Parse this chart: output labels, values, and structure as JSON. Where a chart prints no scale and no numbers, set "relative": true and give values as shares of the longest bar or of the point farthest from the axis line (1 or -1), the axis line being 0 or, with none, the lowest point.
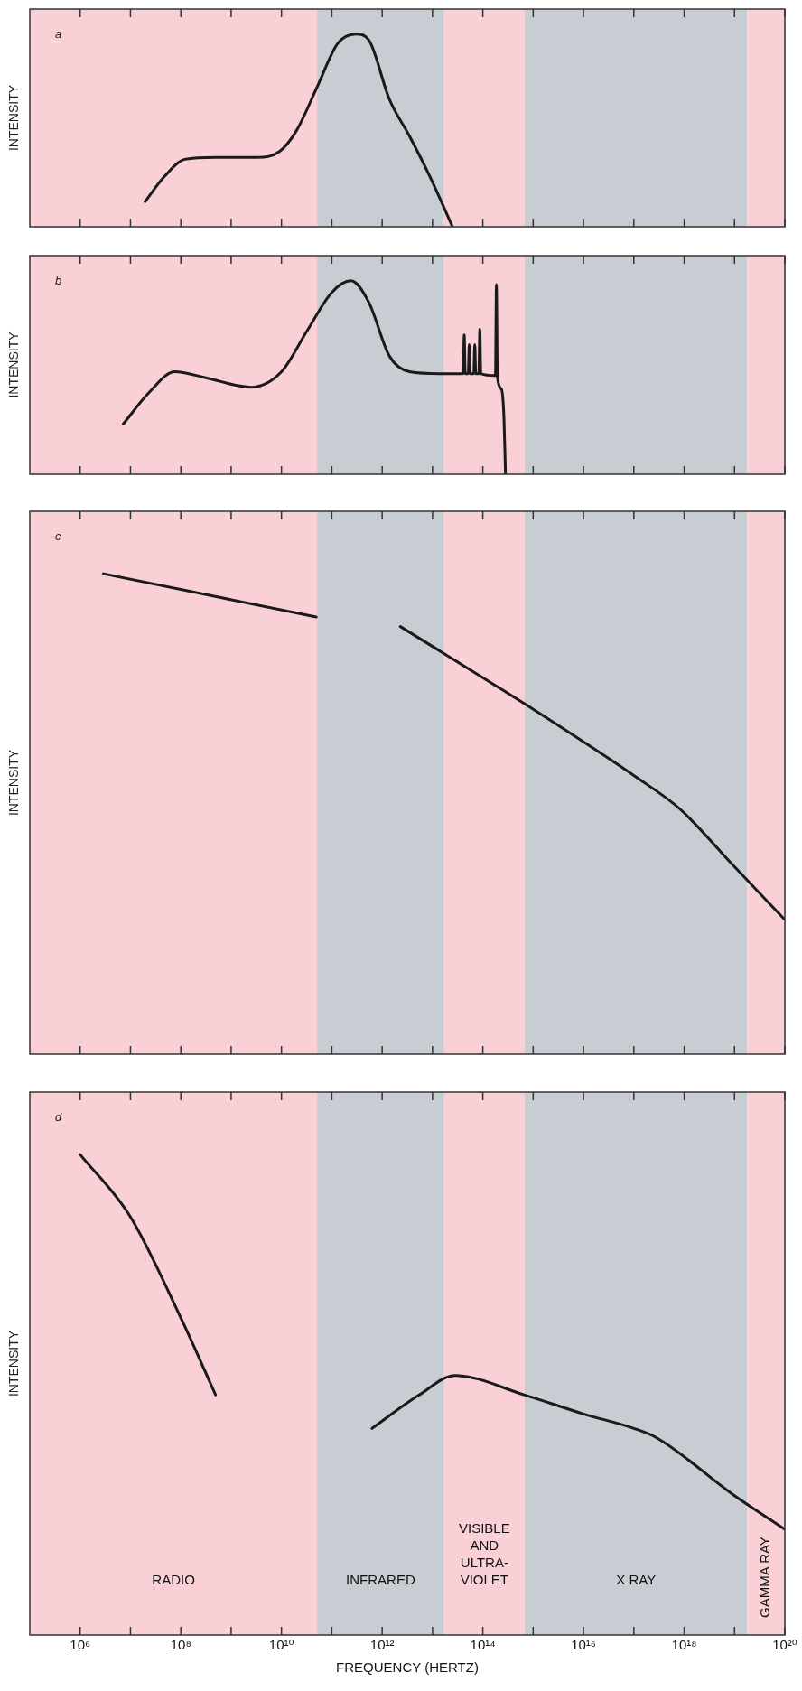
{
  "chart_data": [
    {
      "type": "line",
      "title": "a",
      "ylabel": "INTENSITY",
      "relative": true,
      "log": "x",
      "xlim": [
        100000.0,
        1e+20
      ],
      "xticks": [
        {
          "value": 1000000.0,
          "label": null
        },
        {
          "value": 10000000.0,
          "label": null
        },
        {
          "value": 100000000.0,
          "label": null
        },
        {
          "value": 1000000000.0,
          "label": null
        },
        {
          "value": 10000000000.0,
          "label": null
        },
        {
          "value": 100000000000.0,
          "label": null
        },
        {
          "value": 1000000000000.0,
          "label": null
        },
        {
          "value": 10000000000000.0,
          "label": null
        },
        {
          "value": 100000000000000.0,
          "label": null
        },
        {
          "value": 1000000000000000.0,
          "label": null
        },
        {
          "value": 1e+16,
          "label": null
        },
        {
          "value": 1e+17,
          "label": null
        },
        {
          "value": 1e+18,
          "label": null
        },
        {
          "value": 1e+19,
          "label": null
        },
        {
          "value": 1e+20,
          "label": null
        }
      ],
      "tick_labels": false,
      "marker": "none",
      "bands": [
        {
          "axis": "x",
          "from": 100000.0,
          "to": 51000000000.0,
          "color": "#f8d0d6"
        },
        {
          "axis": "x",
          "from": 51000000000.0,
          "to": 17000000000000.0,
          "color": "#c8ccd3"
        },
        {
          "axis": "x",
          "from": 17000000000000.0,
          "to": 680000000000000.0,
          "color": "#f8d0d6"
        },
        {
          "axis": "x",
          "from": 680000000000000.0,
          "to": 1.8e+19,
          "color": "#c8ccd3"
        },
        {
          "axis": "x",
          "from": 1.8e+19,
          "to": 1e+20,
          "color": "#f8d0d6"
        }
      ],
      "series": [
        {
          "color": "#1a1a1a",
          "x": [
            19500000.0,
            47000000.0,
            120000000.0,
            490000000.0,
            3200000000.0,
            9100000000.0,
            20000000000.0,
            52000000000.0,
            130000000000.0,
            300000000000.0,
            540000000000.0,
            1400000000000.0,
            3500000000000.0,
            8900000000000.0,
            25000000000000.0
          ],
          "values": [
            0.13,
            0.26,
            0.35,
            0.36,
            0.36,
            0.39,
            0.5,
            0.73,
            0.95,
            1,
            0.97,
            0.66,
            0.47,
            0.26,
            0
          ]
        }
      ]
    },
    {
      "type": "line",
      "title": "b",
      "ylabel": "INTENSITY",
      "relative": true,
      "log": "x",
      "xlim": [
        100000.0,
        1e+20
      ],
      "xticks": [
        {
          "value": 1000000.0,
          "label": null
        },
        {
          "value": 10000000.0,
          "label": null
        },
        {
          "value": 100000000.0,
          "label": null
        },
        {
          "value": 1000000000.0,
          "label": null
        },
        {
          "value": 10000000000.0,
          "label": null
        },
        {
          "value": 100000000000.0,
          "label": null
        },
        {
          "value": 1000000000000.0,
          "label": null
        },
        {
          "value": 10000000000000.0,
          "label": null
        },
        {
          "value": 100000000000000.0,
          "label": null
        },
        {
          "value": 1000000000000000.0,
          "label": null
        },
        {
          "value": 1e+16,
          "label": null
        },
        {
          "value": 1e+17,
          "label": null
        },
        {
          "value": 1e+18,
          "label": null
        },
        {
          "value": 1e+19,
          "label": null
        },
        {
          "value": 1e+20,
          "label": null
        }
      ],
      "tick_labels": false,
      "marker": "none",
      "bands": [
        {
          "axis": "x",
          "from": 100000.0,
          "to": 51000000000.0,
          "color": "#f8d0d6"
        },
        {
          "axis": "x",
          "from": 51000000000.0,
          "to": 17000000000000.0,
          "color": "#c8ccd3"
        },
        {
          "axis": "x",
          "from": 17000000000000.0,
          "to": 680000000000000.0,
          "color": "#f8d0d6"
        },
        {
          "axis": "x",
          "from": 680000000000000.0,
          "to": 1.8e+19,
          "color": "#c8ccd3"
        },
        {
          "axis": "x",
          "from": 1.8e+19,
          "to": 1e+20,
          "color": "#f8d0d6"
        }
      ],
      "series": [
        {
          "color": "#1a1a1a",
          "x": [
            7200000.0,
            23000000.0,
            76000000.0,
            300000000.0,
            2500000000.0,
            10000000000.0,
            32000000000.0,
            100000000000.0,
            240000000000.0,
            540000000000.0,
            1400000000000.0,
            3500000000000.0,
            14100000000000.0,
            40700000000000.0,
            42700000000000.0,
            44700000000000.0,
            51300000000000.0,
            53700000000000.0,
            56200000000000.0,
            66100000000000.0,
            69200000000000.0,
            72400000000000.0,
            83200000000000.0,
            87100000000000.0,
            91200000000000.0,
            178000000000000.0,
            186000000000000.0,
            195000000000000.0,
            234000000000000.0,
            263000000000000.0,
            282000000000000.0
          ],
          "values": [
            0.26,
            0.42,
            0.53,
            0.5,
            0.45,
            0.53,
            0.74,
            0.94,
            1,
            0.89,
            0.61,
            0.53,
            0.52,
            0.52,
            0.72,
            0.52,
            0.52,
            0.67,
            0.52,
            0.52,
            0.67,
            0.52,
            0.52,
            0.75,
            0.52,
            0.51,
            0.98,
            0.5,
            0.44,
            0.29,
            0
          ]
        }
      ]
    },
    {
      "type": "line",
      "title": "c",
      "ylabel": "INTENSITY",
      "relative": true,
      "log": "x",
      "xlim": [
        100000.0,
        1e+20
      ],
      "xticks": [
        {
          "value": 1000000.0,
          "label": null
        },
        {
          "value": 10000000.0,
          "label": null
        },
        {
          "value": 100000000.0,
          "label": null
        },
        {
          "value": 1000000000.0,
          "label": null
        },
        {
          "value": 10000000000.0,
          "label": null
        },
        {
          "value": 100000000000.0,
          "label": null
        },
        {
          "value": 1000000000000.0,
          "label": null
        },
        {
          "value": 10000000000000.0,
          "label": null
        },
        {
          "value": 100000000000000.0,
          "label": null
        },
        {
          "value": 1000000000000000.0,
          "label": null
        },
        {
          "value": 1e+16,
          "label": null
        },
        {
          "value": 1e+17,
          "label": null
        },
        {
          "value": 1e+18,
          "label": null
        },
        {
          "value": 1e+19,
          "label": null
        },
        {
          "value": 1e+20,
          "label": null
        }
      ],
      "tick_labels": false,
      "marker": "none",
      "bands": [
        {
          "axis": "x",
          "from": 100000.0,
          "to": 51000000000.0,
          "color": "#f8d0d6"
        },
        {
          "axis": "x",
          "from": 51000000000.0,
          "to": 17000000000000.0,
          "color": "#c8ccd3"
        },
        {
          "axis": "x",
          "from": 17000000000000.0,
          "to": 680000000000000.0,
          "color": "#f8d0d6"
        },
        {
          "axis": "x",
          "from": 680000000000000.0,
          "to": 1.8e+19,
          "color": "#c8ccd3"
        },
        {
          "axis": "x",
          "from": 1.8e+19,
          "to": 1e+20,
          "color": "#f8d0d6"
        }
      ],
      "series": [
        {
          "color": "#1a1a1a",
          "x": [
            2900000.0,
            49000000000.0,
            200000000000.0,
            2300000000000.0,
            660000000000000.0,
            1e+16,
            1e+17,
            8.3e+17,
            1e+19,
            1e+20
          ],
          "values": [
            1,
            0.91,
            null,
            0.89,
            0.73,
            0.65,
            0.58,
            0.51,
            0.39,
            0.28
          ]
        }
      ]
    },
    {
      "type": "line",
      "title": "d",
      "xlabel": "FREQUENCY (HERTZ)",
      "ylabel": "INTENSITY",
      "relative": true,
      "log": "x",
      "xlim": [
        100000.0,
        1e+20
      ],
      "xticks": [
        {
          "value": 1000000.0,
          "label": "10⁶"
        },
        {
          "value": 10000000.0,
          "label": null
        },
        {
          "value": 100000000.0,
          "label": "10⁸"
        },
        {
          "value": 1000000000.0,
          "label": null
        },
        {
          "value": 10000000000.0,
          "label": "10¹⁰"
        },
        {
          "value": 100000000000.0,
          "label": null
        },
        {
          "value": 1000000000000.0,
          "label": "10¹²"
        },
        {
          "value": 10000000000000.0,
          "label": null
        },
        {
          "value": 100000000000000.0,
          "label": "10¹⁴"
        },
        {
          "value": 1000000000000000.0,
          "label": null
        },
        {
          "value": 1e+16,
          "label": "10¹⁶"
        },
        {
          "value": 1e+17,
          "label": null
        },
        {
          "value": 1e+18,
          "label": "10¹⁸"
        },
        {
          "value": 1e+19,
          "label": null
        },
        {
          "value": 1e+20,
          "label": "10²⁰"
        }
      ],
      "tick_labels": "x",
      "marker": "none",
      "bands": [
        {
          "axis": "x",
          "from": 100000.0,
          "to": 51000000000.0,
          "color": "#f8d0d6",
          "label": "RADIO"
        },
        {
          "axis": "x",
          "from": 51000000000.0,
          "to": 17000000000000.0,
          "color": "#c8ccd3",
          "label": "INFRARED"
        },
        {
          "axis": "x",
          "from": 17000000000000.0,
          "to": 680000000000000.0,
          "color": "#f8d0d6",
          "label": "VISIBLE AND ULTRA-VIOLET"
        },
        {
          "axis": "x",
          "from": 680000000000000.0,
          "to": 1.8e+19,
          "color": "#c8ccd3",
          "label": "X RAY"
        },
        {
          "axis": "x",
          "from": 1.8e+19,
          "to": 1e+20,
          "color": "#f8d0d6",
          "label": "GAMMA RAY"
        }
      ],
      "series": [
        {
          "color": "#1a1a1a",
          "x": [
            1000000.0,
            10000000.0,
            100000000.0,
            490000000.0,
            10000000000.0,
            630000000000.0,
            5500000000000.0,
            28000000000000.0,
            660000000000000.0,
            1e+16,
            1e+17,
            2.9e+17,
            1e+19,
            1e+20
          ],
          "values": [
            1,
            0.87,
            0.66,
            0.5,
            null,
            0.43,
            0.5,
            0.54,
            0.5,
            0.46,
            0.43,
            0.41,
            0.29,
            0.22
          ]
        }
      ]
    }
  ]
}
